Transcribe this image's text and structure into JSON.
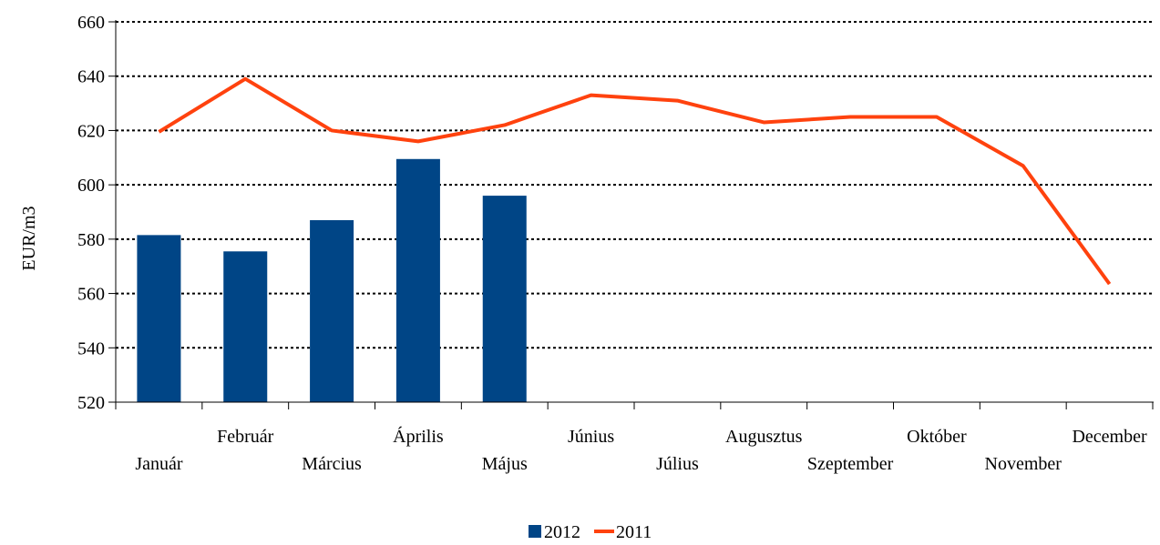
{
  "chart_data": {
    "type": "bar",
    "categories": [
      "Január",
      "Február",
      "Március",
      "Április",
      "Május",
      "Június",
      "Július",
      "Augusztus",
      "Szeptember",
      "Október",
      "November",
      "December"
    ],
    "ylabel": "EUR/m3",
    "xlabel": "",
    "title": "",
    "ylim": [
      520,
      660
    ],
    "yticks": [
      520,
      540,
      560,
      580,
      600,
      620,
      640,
      660
    ],
    "grid": "horizontal-dotted",
    "legend_position": "bottom",
    "series": [
      {
        "name": "2012",
        "kind": "bar",
        "color": "#004586",
        "values": [
          581.5,
          575.5,
          587,
          609.5,
          596,
          null,
          null,
          null,
          null,
          null,
          null,
          null
        ]
      },
      {
        "name": "2011",
        "kind": "line",
        "color": "#FF420E",
        "values": [
          619.5,
          639,
          620,
          616,
          622,
          633,
          631,
          623,
          625,
          625,
          607,
          563.5
        ]
      }
    ]
  }
}
